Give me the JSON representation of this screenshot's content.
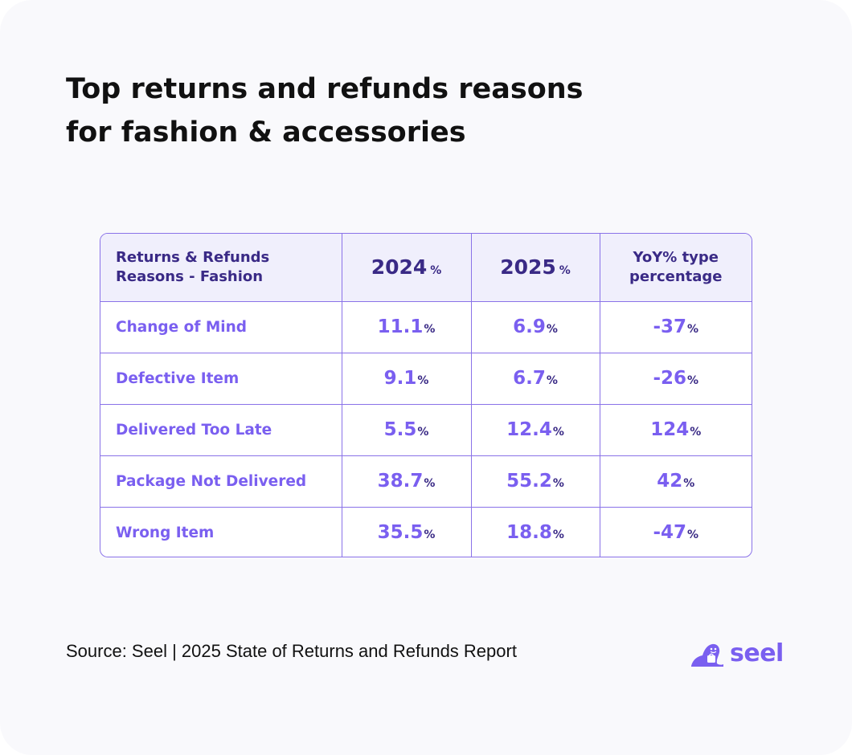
{
  "title_lines": [
    "Top returns and refunds reasons",
    "for fashion & accessories"
  ],
  "chart_data": {
    "type": "table",
    "header": {
      "reason_lines": [
        "Returns & Refunds",
        "Reasons - Fashion"
      ],
      "year_2024": "2024",
      "year_2025": "2025",
      "unit": "%",
      "yoy_lines": [
        "YoY% type",
        "percentage"
      ]
    },
    "rows": [
      {
        "reason": "Change of Mind",
        "v2024": "11.1",
        "v2025": "6.9",
        "yoy": "-37"
      },
      {
        "reason": "Defective Item",
        "v2024": "9.1",
        "v2025": "6.7",
        "yoy": "-26"
      },
      {
        "reason": "Delivered Too Late",
        "v2024": "5.5",
        "v2025": "12.4",
        "yoy": "124"
      },
      {
        "reason": "Package Not Delivered",
        "v2024": "38.7",
        "v2025": "55.2",
        "yoy": "42"
      },
      {
        "reason": "Wrong Item",
        "v2024": "35.5",
        "v2025": "18.8",
        "yoy": "-47"
      }
    ]
  },
  "source": "Source: Seel | 2025 State of Returns and Refunds Report",
  "logo": {
    "text": "seel",
    "icon": "seel-seal-icon",
    "color": "#7a5ff0"
  },
  "colors": {
    "accent": "#7a5ff0",
    "header_text": "#3a2a86",
    "border": "#8a72e8",
    "header_bg": "#f0effc"
  }
}
